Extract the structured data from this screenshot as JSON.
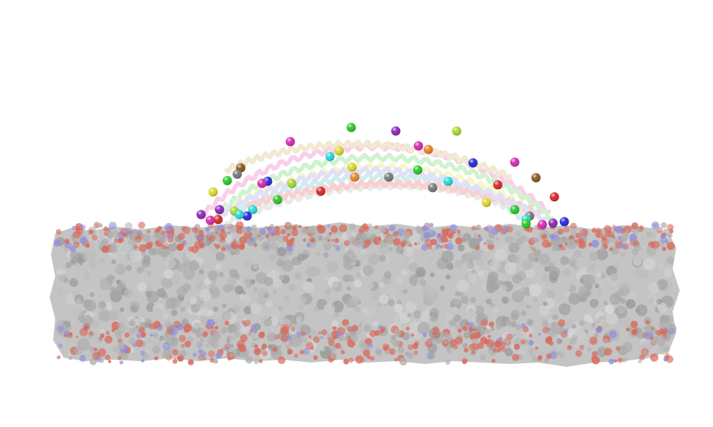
{
  "scene": {
    "background": "#ffffff",
    "membrane": {
      "base_color": "#c8c8c8",
      "headgroup_oxygen_color": "#d9695a",
      "headgroup_nitrogen_color": "#8f8fe0"
    },
    "helix_colors": [
      "#f5a8d8",
      "#a8e8a8",
      "#f0f0a0",
      "#a8e0e0",
      "#d8d8d8",
      "#f5a8a8",
      "#c8c8f5",
      "#e8d8b0"
    ],
    "bead_colors": [
      "#8a2ab8",
      "#2a2ad8",
      "#2ac82a",
      "#d82a2a",
      "#d8d82a",
      "#e8842a",
      "#2ad8d8",
      "#7a7a7a",
      "#8a5a1a",
      "#d82ab0",
      "#a8d82a"
    ],
    "bead_count": 44
  }
}
